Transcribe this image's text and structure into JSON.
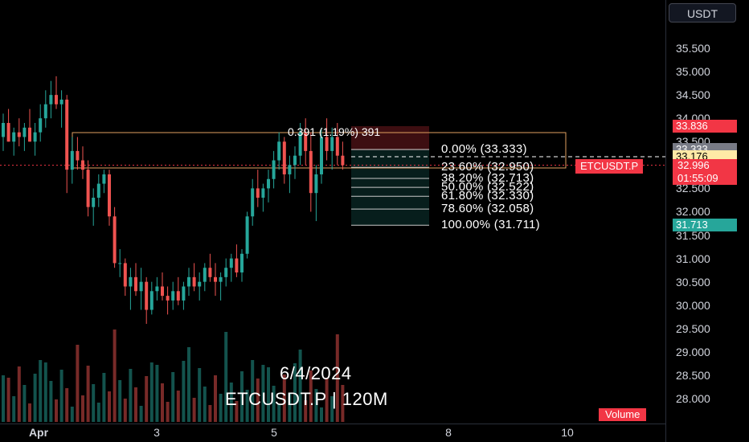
{
  "currency": "USDT",
  "watermark": {
    "date": "6/4/2024",
    "symbol": "ETCUSDT.P | 120M"
  },
  "symbol_tag": "ETCUSDT.P",
  "volume_tag": "Volume",
  "range_label": "0.391 (1.19%) 391",
  "fib_levels": [
    {
      "label": "0.00% (33.333)",
      "price": 33.333,
      "color": "#ffffff"
    },
    {
      "label": "23.60% (32.950)",
      "price": 32.95,
      "color": "#ffffff"
    },
    {
      "label": "38.20% (32.713)",
      "price": 32.713,
      "color": "#ffffff"
    },
    {
      "label": "50.00% (32.522)",
      "price": 32.522,
      "color": "#ffffff"
    },
    {
      "label": "61.80% (32.330)",
      "price": 32.33,
      "color": "#ffffff"
    },
    {
      "label": "78.60% (32.058)",
      "price": 32.058,
      "color": "#ffffff"
    },
    {
      "label": "100.00% (31.711)",
      "price": 31.711,
      "color": "#ffffff"
    }
  ],
  "price_tags": [
    {
      "label": "33.836",
      "price": 33.836,
      "bg": "#f23645",
      "fg": "#ffffff"
    },
    {
      "label": "33.333",
      "price": 33.333,
      "bg": "#787b86",
      "fg": "#ffffff"
    },
    {
      "label": "33.176",
      "price": 33.176,
      "bg": "#ffe9a6",
      "fg": "#000000"
    },
    {
      "label": "31.713",
      "price": 31.713,
      "bg": "#26a69a",
      "fg": "#ffffff"
    }
  ],
  "last_price": {
    "label": "32.996",
    "countdown": "01:55:09",
    "price": 32.996,
    "bg": "#f23645"
  },
  "chart_data": {
    "type": "candlestick",
    "y_axis_ticks": [
      "35.500",
      "35.000",
      "34.500",
      "34.000",
      "33.500",
      "33.000",
      "32.500",
      "32.000",
      "31.500",
      "31.000",
      "30.500",
      "30.000",
      "29.500",
      "29.000",
      "28.500",
      "28.000"
    ],
    "y_top_partial": "35.9",
    "x_axis_ticks": [
      "Apr",
      "3",
      "5",
      "8",
      "10"
    ],
    "colors": {
      "up": "#26a69a",
      "down": "#ef5350"
    },
    "ohlc_approx": [
      [
        33.6,
        34.1,
        33.3,
        33.9
      ],
      [
        33.9,
        34.2,
        33.5,
        33.5
      ],
      [
        33.5,
        33.8,
        33.2,
        33.7
      ],
      [
        33.7,
        34.0,
        33.4,
        33.6
      ],
      [
        33.6,
        33.9,
        33.3,
        33.8
      ],
      [
        33.8,
        34.2,
        33.5,
        33.5
      ],
      [
        33.5,
        33.9,
        33.2,
        33.7
      ],
      [
        33.7,
        34.3,
        33.5,
        34.0
      ],
      [
        34.0,
        34.6,
        33.8,
        34.3
      ],
      [
        34.3,
        34.8,
        34.0,
        34.5
      ],
      [
        34.5,
        34.9,
        34.2,
        34.3
      ],
      [
        34.3,
        34.6,
        33.8,
        34.4
      ],
      [
        34.4,
        34.5,
        32.4,
        32.9
      ],
      [
        32.9,
        33.6,
        32.6,
        33.3
      ],
      [
        33.3,
        33.6,
        32.9,
        33.1
      ],
      [
        33.1,
        33.4,
        32.7,
        32.9
      ],
      [
        32.9,
        33.1,
        31.9,
        32.1
      ],
      [
        32.1,
        32.5,
        31.7,
        32.3
      ],
      [
        32.3,
        32.8,
        32.1,
        32.6
      ],
      [
        32.6,
        32.9,
        32.4,
        32.8
      ],
      [
        32.8,
        32.9,
        31.7,
        31.9
      ],
      [
        31.9,
        32.1,
        30.8,
        30.9
      ],
      [
        30.9,
        31.2,
        30.6,
        30.9
      ],
      [
        30.9,
        31.0,
        30.2,
        30.4
      ],
      [
        30.4,
        30.8,
        29.9,
        30.6
      ],
      [
        30.6,
        30.9,
        30.2,
        30.3
      ],
      [
        30.3,
        30.8,
        29.9,
        30.5
      ],
      [
        30.5,
        30.6,
        29.6,
        29.9
      ],
      [
        29.9,
        30.5,
        29.8,
        30.3
      ],
      [
        30.3,
        30.6,
        30.1,
        30.4
      ],
      [
        30.4,
        30.7,
        30.1,
        30.2
      ],
      [
        30.2,
        30.4,
        29.8,
        30.1
      ],
      [
        30.1,
        30.5,
        29.9,
        30.3
      ],
      [
        30.3,
        30.6,
        30.0,
        30.1
      ],
      [
        30.1,
        30.5,
        29.9,
        30.4
      ],
      [
        30.4,
        30.8,
        30.2,
        30.6
      ],
      [
        30.6,
        30.9,
        30.3,
        30.4
      ],
      [
        30.4,
        30.7,
        30.1,
        30.5
      ],
      [
        30.5,
        30.9,
        30.3,
        30.8
      ],
      [
        30.8,
        31.1,
        30.5,
        30.6
      ],
      [
        30.6,
        30.9,
        30.2,
        30.5
      ],
      [
        30.5,
        30.7,
        30.1,
        30.6
      ],
      [
        30.6,
        31.0,
        30.4,
        30.8
      ],
      [
        30.8,
        31.1,
        30.5,
        31.0
      ],
      [
        31.0,
        31.3,
        30.6,
        30.7
      ],
      [
        30.7,
        31.2,
        30.5,
        31.1
      ],
      [
        31.1,
        32.0,
        31.0,
        31.9
      ],
      [
        31.9,
        32.7,
        31.7,
        32.5
      ],
      [
        32.5,
        32.9,
        32.1,
        32.3
      ],
      [
        32.3,
        32.6,
        32.0,
        32.5
      ],
      [
        32.5,
        32.9,
        32.2,
        32.7
      ],
      [
        32.7,
        33.3,
        32.5,
        33.1
      ],
      [
        33.1,
        33.7,
        32.9,
        33.5
      ],
      [
        33.5,
        33.6,
        32.6,
        32.8
      ],
      [
        32.8,
        33.2,
        32.4,
        33.0
      ],
      [
        33.0,
        33.4,
        32.7,
        33.2
      ],
      [
        33.2,
        33.9,
        33.0,
        33.7
      ],
      [
        33.7,
        34.0,
        33.0,
        33.3
      ],
      [
        33.3,
        33.7,
        32.0,
        32.4
      ],
      [
        32.4,
        33.0,
        31.8,
        32.8
      ],
      [
        32.8,
        33.8,
        32.6,
        33.6
      ],
      [
        33.6,
        34.0,
        33.1,
        33.3
      ],
      [
        33.3,
        33.8,
        32.9,
        33.6
      ],
      [
        33.6,
        33.9,
        33.0,
        33.2
      ],
      [
        33.2,
        33.5,
        32.9,
        32.996
      ]
    ]
  }
}
